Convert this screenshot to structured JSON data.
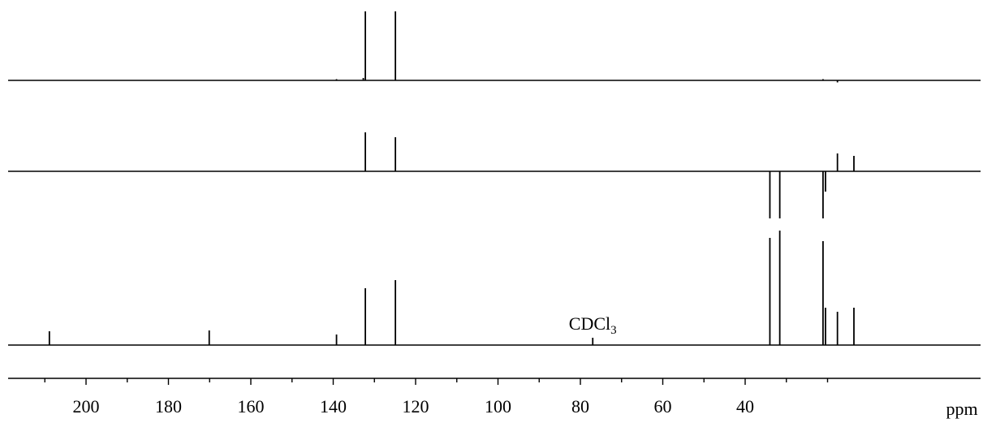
{
  "chart_data": {
    "type": "line",
    "title": "",
    "xlabel": "ppm",
    "ylabel": "",
    "xlim": [
      215,
      10
    ],
    "x_reversed": true,
    "x_ticks": [
      200,
      180,
      160,
      140,
      120,
      100,
      80,
      60,
      40
    ],
    "x_tick_labels": [
      "200",
      "180",
      "160",
      "140",
      "120",
      "100",
      "80",
      "60",
      "40"
    ],
    "grid": false,
    "legend": "none",
    "line_color": "#000000",
    "series": [
      {
        "peaks": [
          {
            "ppm": 132.2,
            "intensity": 85
          },
          {
            "ppm": 124.9,
            "intensity": 85
          },
          {
            "ppm": 132.7,
            "intensity": 3
          },
          {
            "ppm": 139.2,
            "intensity": 1.5
          },
          {
            "ppm": 21.1,
            "intensity": 1.5
          },
          {
            "ppm": 17.6,
            "intensity": -2.5
          }
        ]
      },
      {
        "peaks": [
          {
            "ppm": 132.2,
            "intensity": 48
          },
          {
            "ppm": 124.9,
            "intensity": 42
          },
          {
            "ppm": 17.6,
            "intensity": 22
          },
          {
            "ppm": 13.6,
            "intensity": 19
          },
          {
            "ppm": 34.0,
            "intensity": -58
          },
          {
            "ppm": 31.6,
            "intensity": -58
          },
          {
            "ppm": 21.1,
            "intensity": -58
          },
          {
            "ppm": 20.5,
            "intensity": -25
          }
        ]
      },
      {
        "peaks": [
          {
            "ppm": 208.9,
            "intensity": 17
          },
          {
            "ppm": 170.1,
            "intensity": 18
          },
          {
            "ppm": 139.2,
            "intensity": 13
          },
          {
            "ppm": 132.2,
            "intensity": 70
          },
          {
            "ppm": 124.9,
            "intensity": 80
          },
          {
            "ppm": 77.0,
            "intensity": 9
          },
          {
            "ppm": 34.0,
            "intensity": 132
          },
          {
            "ppm": 31.6,
            "intensity": 141
          },
          {
            "ppm": 21.1,
            "intensity": 128
          },
          {
            "ppm": 20.5,
            "intensity": 46
          },
          {
            "ppm": 17.6,
            "intensity": 41
          },
          {
            "ppm": 13.6,
            "intensity": 46
          }
        ],
        "annotations": [
          {
            "ppm": 77.0,
            "text": "CDCl",
            "subscript": "3"
          }
        ]
      }
    ]
  }
}
